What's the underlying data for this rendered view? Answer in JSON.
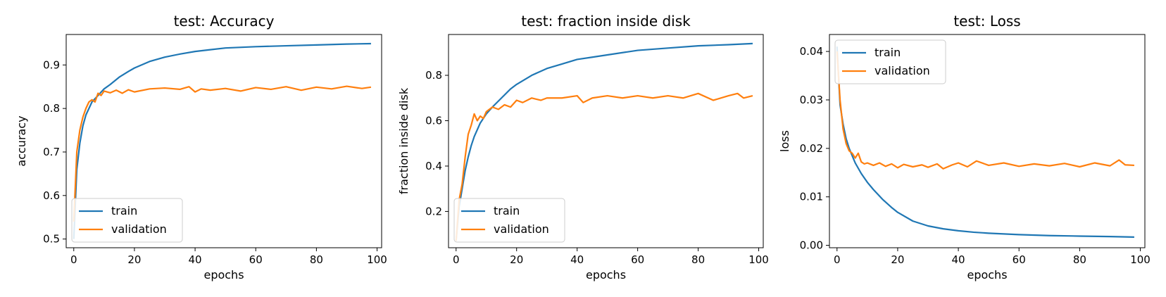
{
  "figure": {
    "suptitle": ""
  },
  "colors": {
    "train": "#1f77b4",
    "validation": "#ff7f0e"
  },
  "chart_data": [
    {
      "type": "line",
      "title": "test: Accuracy",
      "xlabel": "epochs",
      "ylabel": "accuracy",
      "xlim": [
        -2.5,
        101.5
      ],
      "ylim": [
        0.48,
        0.97
      ],
      "xticks": [
        0,
        20,
        40,
        60,
        80,
        100
      ],
      "yticks": [
        0.5,
        0.6,
        0.7,
        0.8,
        0.9
      ],
      "ytick_labels": [
        "0.5",
        "0.6",
        "0.7",
        "0.8",
        "0.9"
      ],
      "legend": "lower-left",
      "grid": false,
      "series": [
        {
          "name": "train",
          "x": [
            0,
            1,
            2,
            3,
            4,
            5,
            6,
            8,
            10,
            12,
            15,
            18,
            20,
            25,
            30,
            35,
            40,
            45,
            50,
            60,
            70,
            80,
            90,
            98
          ],
          "y": [
            0.5,
            0.66,
            0.72,
            0.76,
            0.785,
            0.8,
            0.815,
            0.83,
            0.845,
            0.855,
            0.872,
            0.885,
            0.893,
            0.908,
            0.918,
            0.925,
            0.931,
            0.935,
            0.939,
            0.942,
            0.944,
            0.946,
            0.948,
            0.949
          ]
        },
        {
          "name": "validation",
          "x": [
            0,
            1,
            2,
            3,
            4,
            5,
            6,
            7,
            8,
            9,
            10,
            12,
            14,
            16,
            18,
            20,
            25,
            30,
            35,
            38,
            40,
            42,
            45,
            50,
            55,
            60,
            65,
            70,
            75,
            80,
            85,
            90,
            95,
            98
          ],
          "y": [
            0.54,
            0.7,
            0.75,
            0.78,
            0.8,
            0.815,
            0.82,
            0.815,
            0.835,
            0.83,
            0.84,
            0.836,
            0.842,
            0.835,
            0.843,
            0.838,
            0.845,
            0.847,
            0.844,
            0.85,
            0.838,
            0.845,
            0.842,
            0.846,
            0.84,
            0.848,
            0.844,
            0.85,
            0.842,
            0.849,
            0.845,
            0.851,
            0.846,
            0.849
          ]
        }
      ]
    },
    {
      "type": "line",
      "title": "test: fraction inside disk",
      "xlabel": "epochs",
      "ylabel": "fraction inside disk",
      "xlim": [
        -2.5,
        101.5
      ],
      "ylim": [
        0.04,
        0.98
      ],
      "xticks": [
        0,
        20,
        40,
        60,
        80,
        100
      ],
      "yticks": [
        0.2,
        0.4,
        0.6,
        0.8
      ],
      "ytick_labels": [
        "0.2",
        "0.4",
        "0.6",
        "0.8"
      ],
      "legend": "lower-left",
      "grid": false,
      "series": [
        {
          "name": "train",
          "x": [
            0,
            1,
            2,
            3,
            4,
            5,
            6,
            8,
            10,
            12,
            15,
            18,
            20,
            25,
            30,
            35,
            40,
            45,
            50,
            60,
            70,
            80,
            90,
            98
          ],
          "y": [
            0.07,
            0.22,
            0.3,
            0.38,
            0.44,
            0.49,
            0.53,
            0.59,
            0.63,
            0.66,
            0.7,
            0.74,
            0.76,
            0.8,
            0.83,
            0.85,
            0.87,
            0.88,
            0.89,
            0.91,
            0.92,
            0.93,
            0.935,
            0.94
          ]
        },
        {
          "name": "validation",
          "x": [
            0,
            1,
            2,
            3,
            4,
            5,
            6,
            7,
            8,
            9,
            10,
            12,
            14,
            16,
            18,
            20,
            22,
            25,
            28,
            30,
            35,
            40,
            42,
            45,
            50,
            55,
            60,
            65,
            70,
            75,
            80,
            85,
            90,
            93,
            95,
            98
          ],
          "y": [
            0.07,
            0.25,
            0.32,
            0.44,
            0.54,
            0.58,
            0.63,
            0.6,
            0.62,
            0.61,
            0.64,
            0.66,
            0.65,
            0.67,
            0.66,
            0.69,
            0.68,
            0.7,
            0.69,
            0.7,
            0.7,
            0.71,
            0.68,
            0.7,
            0.71,
            0.7,
            0.71,
            0.7,
            0.71,
            0.7,
            0.72,
            0.69,
            0.71,
            0.72,
            0.7,
            0.71
          ]
        }
      ]
    },
    {
      "type": "line",
      "title": "test: Loss",
      "xlabel": "epochs",
      "ylabel": "loss",
      "xlim": [
        -2.5,
        101.5
      ],
      "ylim": [
        -0.0005,
        0.0435
      ],
      "xticks": [
        0,
        20,
        40,
        60,
        80,
        100
      ],
      "yticks": [
        0.0,
        0.01,
        0.02,
        0.03,
        0.04
      ],
      "ytick_labels": [
        "0.00",
        "0.01",
        "0.02",
        "0.03",
        "0.04"
      ],
      "legend": "upper-left",
      "grid": false,
      "series": [
        {
          "name": "train",
          "x": [
            0,
            1,
            2,
            3,
            4,
            5,
            6,
            8,
            10,
            12,
            15,
            18,
            20,
            25,
            30,
            35,
            40,
            45,
            50,
            60,
            70,
            80,
            90,
            98
          ],
          "y": [
            0.041,
            0.029,
            0.025,
            0.022,
            0.02,
            0.0185,
            0.017,
            0.0148,
            0.013,
            0.0115,
            0.0095,
            0.0078,
            0.0068,
            0.005,
            0.004,
            0.0034,
            0.003,
            0.0027,
            0.0025,
            0.0022,
            0.002,
            0.0019,
            0.0018,
            0.0017
          ]
        },
        {
          "name": "validation",
          "x": [
            0,
            1,
            2,
            3,
            4,
            5,
            6,
            7,
            8,
            9,
            10,
            12,
            14,
            16,
            18,
            20,
            22,
            25,
            28,
            30,
            33,
            35,
            38,
            40,
            43,
            46,
            50,
            55,
            60,
            65,
            70,
            75,
            80,
            85,
            90,
            93,
            95,
            98
          ],
          "y": [
            0.04,
            0.03,
            0.024,
            0.021,
            0.0195,
            0.019,
            0.018,
            0.019,
            0.0172,
            0.0168,
            0.017,
            0.0165,
            0.017,
            0.0163,
            0.0168,
            0.016,
            0.0167,
            0.0162,
            0.0166,
            0.0161,
            0.0168,
            0.0158,
            0.0166,
            0.017,
            0.0162,
            0.0174,
            0.0165,
            0.017,
            0.0163,
            0.0168,
            0.0164,
            0.0169,
            0.0162,
            0.017,
            0.0164,
            0.0176,
            0.0166,
            0.0165
          ]
        }
      ]
    }
  ]
}
